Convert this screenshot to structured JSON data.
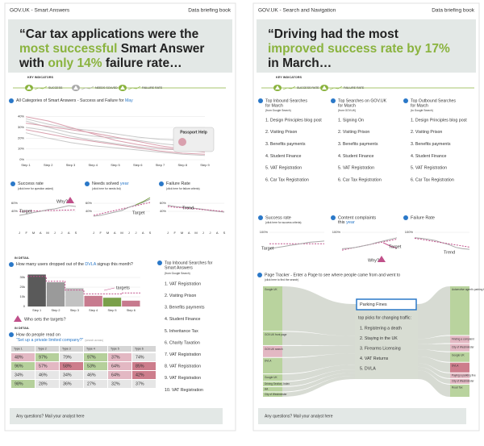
{
  "left": {
    "header": {
      "title": "GOV.UK - Smart Answers",
      "book": "Data briefing book"
    },
    "quote": [
      [
        {
          "text": "“Car tax applications were the"
        }
      ],
      [
        {
          "text": "most successful",
          "color": "#8ab33e"
        },
        {
          "text": " Smart Answer"
        }
      ],
      [
        {
          "text": "with "
        },
        {
          "text": "only 14%",
          "color": "#8ab33e"
        },
        {
          "text": " failure rate…"
        }
      ]
    ],
    "key_indicators": {
      "label": "KEY INDICATORS",
      "items": [
        "SUCCESS",
        "NEEDS SOLVED",
        "FAILURE RATE"
      ]
    },
    "overview": {
      "title": "All Categories of Smart Answers - Success and Failure for ",
      "month": "May",
      "tooltip": "Passport Help",
      "chart": {
        "type": "line",
        "ylim": [
          0,
          45
        ],
        "yticks": [
          {
            "value": 40,
            "label": "40%"
          },
          {
            "value": 30,
            "label": "30%"
          },
          {
            "value": 20,
            "label": "20%"
          },
          {
            "value": 10,
            "label": "10%"
          },
          {
            "value": 0,
            "label": "0%"
          }
        ],
        "categories": [
          "Step 1",
          "Step 2",
          "Step 3",
          "Step 4",
          "Step 5",
          "Step 6",
          "Step 7",
          "Step 8",
          "Step 9"
        ],
        "series": [
          {
            "color": "#c8c8c8",
            "values": [
              38,
              33,
              29,
              27,
              24,
              21,
              19,
              18,
              16
            ]
          },
          {
            "color": "#c8c8c8",
            "values": [
              36,
              30,
              25,
              22,
              20,
              18,
              15,
              13,
              12
            ]
          },
          {
            "color": "#d9a0ae",
            "values": [
              34,
              31,
              28,
              25,
              21,
              17,
              13,
              10,
              8
            ]
          },
          {
            "color": "#c8c8c8",
            "values": [
              30,
              27,
              22,
              18,
              15,
              12,
              10,
              9,
              8
            ]
          },
          {
            "color": "#d9a0ae",
            "values": [
              28,
              24,
              20,
              17,
              14,
              11,
              8,
              6,
              5
            ]
          },
          {
            "color": "#c8c8c8",
            "values": [
              25,
              20,
              16,
              13,
              11,
              9,
              7,
              5,
              4
            ]
          },
          {
            "color": "#d9a0ae",
            "values": [
              40,
              36,
              30,
              24,
              18,
              14,
              11,
              9,
              7
            ]
          }
        ]
      }
    },
    "kpis": [
      {
        "title": "Success rate",
        "note": "(click here for question asked)",
        "annotations": [
          "Target",
          "Why?"
        ],
        "chart": {
          "type": "line",
          "ylim": [
            0,
            80
          ],
          "yticks": [
            {
              "value": 60,
              "label": "60%"
            },
            {
              "value": 40,
              "label": "40%"
            }
          ],
          "categories": [
            "J",
            "F",
            "M",
            "A",
            "M",
            "J",
            "J",
            "A",
            "S"
          ],
          "series": [
            {
              "color": "#c0508a",
              "dash": true,
              "values": [
                40,
                40,
                41,
                41,
                42,
                42,
                43,
                43,
                44
              ]
            },
            {
              "color": "#a8a8a8",
              "values": [
                30,
                33,
                37,
                40,
                44,
                46,
                50,
                54,
                52
              ]
            }
          ]
        }
      },
      {
        "title": "Needs solved ",
        "link": "year",
        "note": "(click here for needs list)",
        "annotations": [
          "Target"
        ],
        "chart": {
          "type": "line",
          "ylim": [
            0,
            80
          ],
          "yticks": [
            {
              "value": 60,
              "label": "60%"
            },
            {
              "value": 40,
              "label": "40%"
            }
          ],
          "categories": [
            "J",
            "F",
            "M",
            "A",
            "M",
            "J",
            "J",
            "A",
            "S"
          ],
          "series": [
            {
              "color": "#c0508a",
              "dash": true,
              "values": [
                30,
                34,
                38,
                42,
                46,
                50,
                54,
                58,
                62
              ]
            },
            {
              "color": "#a8a8a8",
              "values": [
                28,
                30,
                34,
                38,
                42,
                50,
                56,
                62,
                70
              ]
            },
            {
              "color": "#7aa04a",
              "values": [
                null,
                null,
                null,
                null,
                null,
                null,
                56,
                64,
                74
              ]
            }
          ]
        }
      },
      {
        "title": "Failure Rate",
        "note": "(click here for failure criteria)",
        "annotations": [
          "Trend"
        ],
        "chart": {
          "type": "line",
          "ylim": [
            0,
            80
          ],
          "yticks": [
            {
              "value": 60,
              "label": "60%"
            },
            {
              "value": 40,
              "label": "40%"
            }
          ],
          "categories": [
            "J",
            "F",
            "M",
            "A",
            "M",
            "J",
            "J",
            "A",
            "S"
          ],
          "series": [
            {
              "color": "#a8a8a8",
              "values": [
                55,
                52,
                50,
                50,
                47,
                45,
                42,
                40,
                38
              ]
            },
            {
              "color": "#c0508a",
              "dash": true,
              "values": [
                52,
                50,
                49,
                47,
                46,
                44,
                43,
                41,
                40
              ]
            }
          ]
        }
      }
    ],
    "dropout": {
      "tag": "IN DETAIL",
      "question": "How many users dropped out of the ",
      "link": "DVLA",
      "question_end": " signup this month?",
      "annotation": "targets",
      "footer_link": "Who sets the targets?",
      "chart": {
        "type": "bar",
        "ylim": [
          0,
          35000
        ],
        "yticks": [
          {
            "value": 30000,
            "label": "30k"
          },
          {
            "value": 20000,
            "label": "20k"
          },
          {
            "value": 10000,
            "label": "10k"
          },
          0
        ],
        "categories": [
          "Step 1",
          "Step 2",
          "Step 3",
          "Step 4",
          "Step 5",
          "Step 6"
        ],
        "values": [
          33000,
          25000,
          19000,
          11000,
          9000,
          6000
        ],
        "colors": [
          "#5a5a5a",
          "#9a9a9a",
          "#c2c2c2",
          "#c77a8e",
          "#7aa04a",
          "#c77a8e"
        ],
        "targets": [
          31000,
          26000,
          17000,
          13000,
          13000,
          14000
        ],
        "target_color": "#c0508a"
      }
    },
    "top_searches": {
      "title": [
        "Top Inbound Searches for",
        "Smart Answers"
      ],
      "note": "(from Google Search)",
      "items": [
        "1. VAT Registration",
        "2. Visiting Prison",
        "3. Benefits payments",
        "4. Student Finance",
        "5. Inheritance Tax",
        "6. Charity Taxation",
        "7. VAT Registration",
        "8. VAT Registration",
        "9. VAT Registration",
        "10. VAT Registration"
      ]
    },
    "reading": {
      "tag": "IN DETAIL",
      "question": "How do people read on",
      "link": "“Set up a private limited company?”",
      "note": "(search across)",
      "table": {
        "header": [
          "Type 1",
          "Type 2",
          "Type 3",
          "Type 4",
          "Type 5",
          "Type 6"
        ],
        "rows": [
          [
            "48%",
            "97%",
            "79%",
            "97%",
            "37%",
            "74%"
          ],
          [
            "96%",
            "57%",
            "58%",
            "53%",
            "64%",
            "85%"
          ],
          [
            "34%",
            "46%",
            "34%",
            "46%",
            "64%",
            "42%"
          ],
          [
            "98%",
            "28%",
            "36%",
            "27%",
            "32%",
            "37%"
          ]
        ],
        "colors": [
          [
            "#e3b8c3",
            "#b5d09b",
            "#e6e6e6",
            "#b5d09b",
            "#e3b8c3",
            "#e6e6e6"
          ],
          [
            "#b5d09b",
            "#e3b8c3",
            "#cd7d8c",
            "#b5d09b",
            "#e3b8c3",
            "#cd7d8c"
          ],
          [
            "#e6e6e6",
            "#e6e6e6",
            "#e6e6e6",
            "#e6e6e6",
            "#e3b8c3",
            "#cd7d8c"
          ],
          [
            "#b5d09b",
            "#e6e6e6",
            "#e6e6e6",
            "#e6e6e6",
            "#e6e6e6",
            "#e6e6e6"
          ]
        ]
      }
    },
    "footer": "Any questions? Mail your analyst here"
  },
  "right": {
    "header": {
      "title": "GOV.UK - Search and Navigation",
      "book": "Data briefing book"
    },
    "quote": [
      [
        {
          "text": "“Driving had the most"
        }
      ],
      [
        {
          "text": "improved success rate by 17%",
          "color": "#8ab33e"
        }
      ],
      [
        {
          "text": "in March…"
        }
      ]
    ],
    "key_indicators": {
      "label": "KEY INDICATORS",
      "items": [
        "SUCCESS RATE",
        "FAILURE RATE"
      ]
    },
    "lists": [
      {
        "title": "Top Inbound Searches",
        "for": "for March",
        "note": "(from Google Search)",
        "items": [
          "1. Design Principles blog post",
          "2. Visiting Prison",
          "3. Benefits payments",
          "4. Student Finance",
          "5. VAT Registration",
          "6. Car Tax Registration"
        ]
      },
      {
        "title": "Top Searches on GOV.UK",
        "for": "for March",
        "note": "(from GOV.UK)",
        "items": [
          "1. Signing On",
          "2. Visiting Prison",
          "3. Benefits payments",
          "4. Student Finance",
          "5. VAT Registration",
          "6. Car Tax Registration"
        ]
      },
      {
        "title": "Top Outbound Searches",
        "for": "for March",
        "note": "(to Google Search)",
        "items": [
          "1. Design Principles blog post",
          "2. Visiting Prison",
          "3. Benefits payments",
          "4. Student Finance",
          "5. VAT Registration",
          "6. Car Tax Registration"
        ]
      }
    ],
    "kpis": [
      {
        "title": "Success rate",
        "note": "(click here for success criteria)",
        "annotations": [
          "Target"
        ],
        "chart": {
          "type": "line",
          "ylim": [
            0,
            100
          ],
          "yticks": [
            {
              "value": 100,
              "label": "100%"
            }
          ],
          "series": [
            {
              "color": "#c0508a",
              "dash": true,
              "values": [
                58,
                58,
                58,
                58,
                58,
                58,
                58,
                58,
                58
              ]
            },
            {
              "color": "#a8a8a8",
              "values": [
                40,
                44,
                48,
                52,
                56,
                60,
                64,
                66,
                68
              ]
            }
          ]
        }
      },
      {
        "title": "Content complaints ",
        "title2": "this ",
        "link": "year",
        "annotations": [
          "Target",
          "Why?"
        ],
        "chart": {
          "type": "line",
          "ylim": [
            0,
            100
          ],
          "yticks": [
            {
              "value": 100,
              "label": "100%"
            }
          ],
          "series": [
            {
              "color": "#c0508a",
              "dash": true,
              "values": [
                35,
                40,
                45,
                50,
                55,
                60,
                65,
                70,
                75
              ]
            },
            {
              "color": "#a8a8a8",
              "values": [
                40,
                42,
                45,
                50,
                55,
                62,
                68,
                74,
                80
              ]
            },
            {
              "color": "#c0508a",
              "values": [
                null,
                null,
                null,
                null,
                null,
                null,
                62,
                50,
                42
              ]
            }
          ]
        }
      },
      {
        "title": "Failure Rate",
        "annotations": [
          "Trend"
        ],
        "chart": {
          "type": "line",
          "ylim": [
            0,
            100
          ],
          "yticks": [
            {
              "value": 100,
              "label": "100%"
            }
          ],
          "series": [
            {
              "color": "#a8a8a8",
              "values": [
                80,
                78,
                74,
                70,
                62,
                55,
                45,
                40,
                38
              ]
            },
            {
              "color": "#c0508a",
              "dash": true,
              "values": [
                78,
                74,
                70,
                66,
                62,
                58,
                54,
                50,
                46
              ]
            }
          ]
        }
      }
    ],
    "tracker": {
      "title": "Page Tracker - Enter a Page to see  where people came from and went to",
      "note": "(click here to find the search)",
      "search": "Parking Fines",
      "picks_title": "top picks for changing traffic:",
      "picks": [
        "1. Registering a death",
        "2. Staying in the UK",
        "3. Firearms Licensing",
        "4. VAT Returns",
        "5. DVLA"
      ],
      "sources": {
        "labels": [
          "Google UK",
          "GOV.UK front page",
          "GOV.UK search",
          "DVLA",
          "Google UK",
          "Driving Section, Index",
          "AA",
          "City of Westminster"
        ],
        "values": [
          40,
          12,
          10,
          14,
          6,
          4,
          4,
          4
        ],
        "colors": [
          "#b9d39e",
          "#b9d39e",
          "#e3b8c3",
          "#b9d39e",
          "#b9d39e",
          "#b9d39e",
          "#b9d39e",
          "#b9d39e"
        ]
      },
      "targets": {
        "labels": [
          "Automotive agent's parking fines",
          "Finding a complaint",
          "City of Westminster",
          "Google UK",
          "DVLA",
          "Paying a parking fine",
          "City of Westminster",
          "Road Tax"
        ],
        "values": [
          40,
          6,
          6,
          8,
          8,
          4,
          4,
          10
        ],
        "colors": [
          "#b9d39e",
          "#e3b8c3",
          "#e3b8c3",
          "#b9d39e",
          "#cd7d8c",
          "#e3b8c3",
          "#e3b8c3",
          "#b9d39e"
        ]
      }
    },
    "footer": "Any questions? Mail your analyst here"
  }
}
